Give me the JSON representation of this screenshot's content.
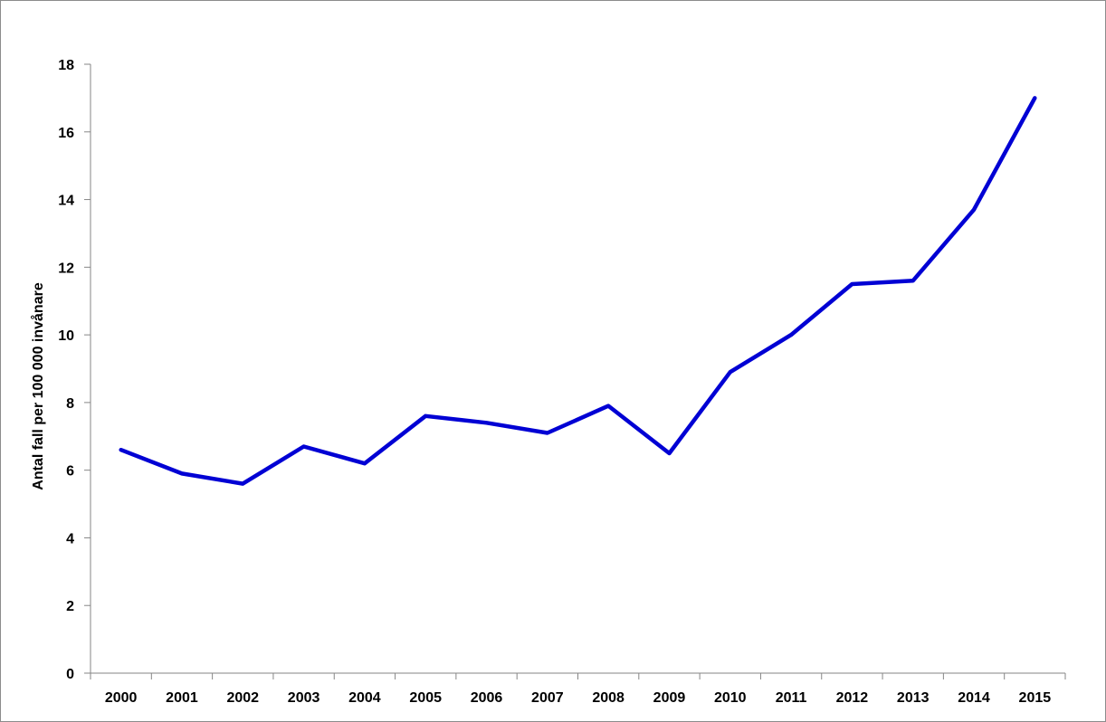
{
  "chart_data": {
    "type": "line",
    "title": "",
    "xlabel": "",
    "ylabel": "Antal fall per 100 000 invånare",
    "categories": [
      "2000",
      "2001",
      "2002",
      "2003",
      "2004",
      "2005",
      "2006",
      "2007",
      "2008",
      "2009",
      "2010",
      "2011",
      "2012",
      "2013",
      "2014",
      "2015"
    ],
    "series": [
      {
        "values": [
          6.6,
          5.9,
          5.6,
          6.7,
          6.2,
          7.6,
          7.4,
          7.1,
          7.9,
          6.5,
          8.9,
          10.0,
          11.5,
          11.6,
          13.7,
          17.0
        ],
        "color": "#0000d4"
      }
    ],
    "ylim": [
      0,
      18
    ],
    "yticks": [
      "0",
      "2",
      "4",
      "6",
      "8",
      "10",
      "12",
      "14",
      "16",
      "18"
    ],
    "grid": false,
    "legend": "none"
  }
}
